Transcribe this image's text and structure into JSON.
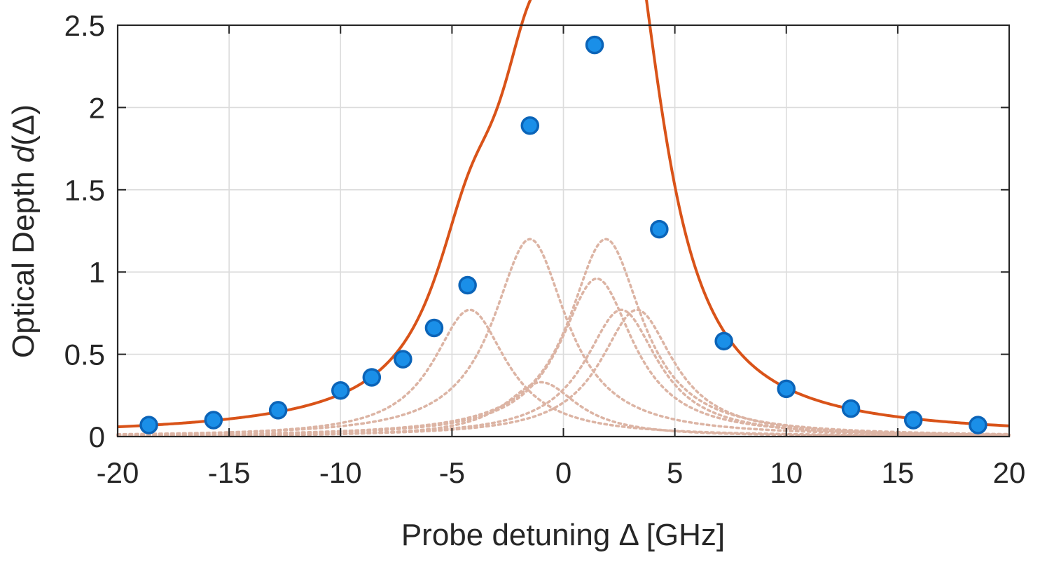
{
  "chart_data": {
    "type": "scatter",
    "title": "",
    "xlabel": "Probe detuning Δ [GHz]",
    "ylabel_prefix": "Optical Depth ",
    "ylabel_var": "d",
    "ylabel_suffix": "(Δ)",
    "xlim": [
      -20,
      20
    ],
    "ylim": [
      0,
      2.5
    ],
    "xticks": [
      -20,
      -15,
      -10,
      -5,
      0,
      5,
      10,
      15,
      20
    ],
    "xtick_labels": [
      "-20",
      "-15",
      "-10",
      "-5",
      "0",
      "5",
      "10",
      "15",
      "20"
    ],
    "yticks": [
      0,
      0.5,
      1,
      1.5,
      2,
      2.5
    ],
    "ytick_labels": [
      "0",
      "0.5",
      "1",
      "1.5",
      "2",
      "2.5"
    ],
    "grid": true,
    "legend": "none",
    "colors": {
      "data_points": "#1a8fe8",
      "data_points_edge": "#0b64b8",
      "fit_line": "#d95319",
      "components": "#dcb4a4",
      "grid": "#dcdcdc",
      "axes": "#262626"
    },
    "series": [
      {
        "kind": "points",
        "x": [
          -18.6,
          -15.7,
          -12.8,
          -10.0,
          -8.6,
          -7.2,
          -5.8,
          -4.3,
          -1.5,
          1.4,
          4.3,
          7.2,
          10.0,
          12.9,
          15.7,
          18.6
        ],
        "y": [
          0.07,
          0.1,
          0.16,
          0.28,
          0.36,
          0.47,
          0.66,
          0.92,
          1.89,
          2.38,
          1.26,
          0.58,
          0.29,
          0.17,
          0.1,
          0.07
        ]
      }
    ],
    "fit_model": {
      "description": "sum of Lorentzian components",
      "components": [
        {
          "center": -1.5,
          "amplitude": 1.2,
          "hwhm": 2.0
        },
        {
          "center": 1.9,
          "amplitude": 1.2,
          "hwhm": 2.0
        },
        {
          "center": -4.2,
          "amplitude": 0.77,
          "hwhm": 2.0
        },
        {
          "center": 3.3,
          "amplitude": 0.77,
          "hwhm": 2.0
        },
        {
          "center": 1.5,
          "amplitude": 0.96,
          "hwhm": 2.0
        },
        {
          "center": -1.0,
          "amplitude": 0.33,
          "hwhm": 2.0
        },
        {
          "center": 2.6,
          "amplitude": 0.77,
          "hwhm": 2.0
        }
      ],
      "baseline": 0.0
    }
  }
}
